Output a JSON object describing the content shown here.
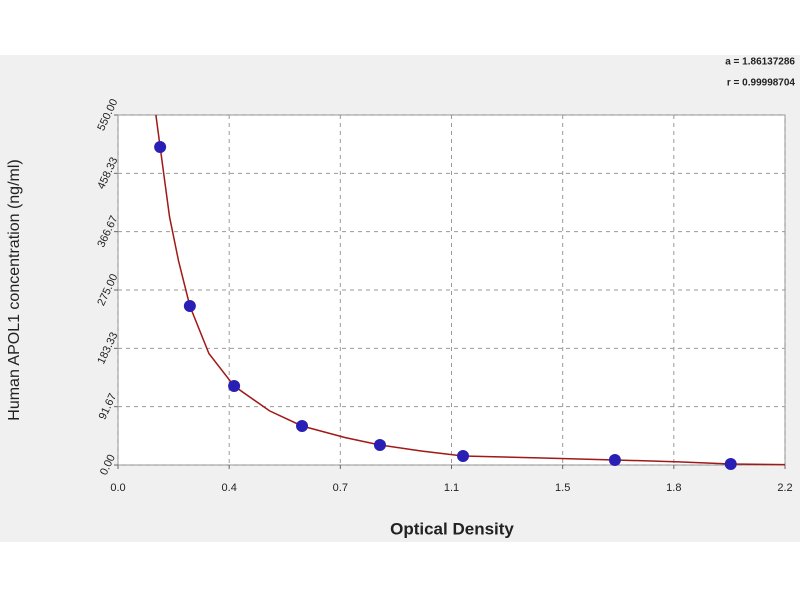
{
  "chart_data": {
    "type": "scatter",
    "x_label": "Optical Density",
    "y_label": "Human APOL1 concentration (ng/ml)",
    "annotations": [
      "a = 1.86137286",
      "r = 0.99998704"
    ],
    "xlim": [
      0,
      2.2
    ],
    "xticks": [
      {
        "value": 0,
        "label": "0.0"
      },
      {
        "value": 0.3667,
        "label": "0.4"
      },
      {
        "value": 0.7333,
        "label": "0.7"
      },
      1.1,
      {
        "value": 1.4667,
        "label": "1.5"
      },
      {
        "value": 1.8333,
        "label": "1.8"
      },
      2.2
    ],
    "ylim": [
      0,
      550
    ],
    "yticks": [
      {
        "value": 0,
        "label": "0.00"
      },
      91.67,
      183.33,
      {
        "value": 275,
        "label": "275.00"
      },
      366.67,
      458.33,
      {
        "value": 550,
        "label": "550.00"
      }
    ],
    "grid": true,
    "series": [
      {
        "color": "#2a1fb5",
        "x": [
          0.139,
          0.237,
          0.383,
          0.607,
          0.864,
          1.138,
          1.639,
          2.021
        ],
        "values": [
          499.7,
          249.9,
          124.1,
          61.3,
          31.4,
          14.1,
          7.9,
          1.6
        ]
      }
    ],
    "fit": {
      "color": "#a01818",
      "x": [
        0.125,
        0.139,
        0.17,
        0.2,
        0.237,
        0.3,
        0.383,
        0.5,
        0.607,
        0.75,
        0.864,
        1.0,
        1.138,
        1.4,
        1.639,
        1.85,
        2.021,
        2.2
      ],
      "values": [
        550,
        499.7,
        390,
        320,
        249.9,
        175,
        124.1,
        85,
        61.3,
        43,
        31.4,
        22,
        14.1,
        11,
        7.9,
        5,
        1.6,
        0.5
      ]
    }
  }
}
